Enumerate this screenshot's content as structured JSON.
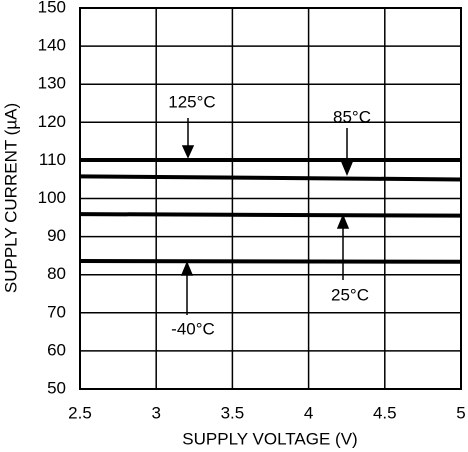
{
  "chart_data": {
    "type": "line",
    "xlabel": "SUPPLY VOLTAGE (V)",
    "ylabel": "SUPPLY CURRENT (µA)",
    "x": [
      2.5,
      5
    ],
    "series": [
      {
        "name": "125°C",
        "color": "#000000",
        "values": [
          110.1,
          110.1
        ]
      },
      {
        "name": "85°C",
        "color": "#000000",
        "values": [
          105.8,
          105.0
        ]
      },
      {
        "name": "25°C",
        "color": "#000000",
        "values": [
          95.9,
          95.5
        ]
      },
      {
        "name": "-40°C",
        "color": "#000000",
        "values": [
          83.6,
          83.4
        ]
      }
    ],
    "xlim": [
      2.5,
      5
    ],
    "xticks": [
      2.5,
      3,
      3.5,
      4,
      4.5,
      5
    ],
    "ylim": [
      50,
      150
    ],
    "yticks": [
      50,
      60,
      70,
      80,
      90,
      100,
      110,
      120,
      130,
      140,
      150
    ],
    "grid": true
  }
}
